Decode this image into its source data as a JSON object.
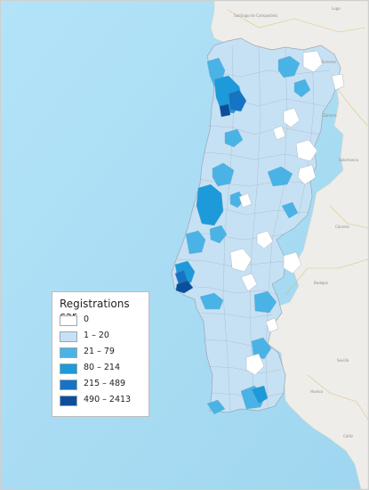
{
  "legend": {
    "title": "Registrations car",
    "items": [
      {
        "label": "0",
        "color": "#ffffff"
      },
      {
        "label": "1 – 20",
        "color": "#c7e1f4"
      },
      {
        "label": "21 – 79",
        "color": "#49b3e6"
      },
      {
        "label": "80 – 214",
        "color": "#1c9ad9"
      },
      {
        "label": "215 – 489",
        "color": "#1574c3"
      },
      {
        "label": "490 – 2413",
        "color": "#0b4f9c"
      }
    ]
  },
  "colors": {
    "ocean": "#a9dcf4",
    "land": "#eeede9",
    "portugal_base": "#c7e1f4",
    "border": "#9aa6b2"
  },
  "place_labels": [
    "Santiago de Compostela",
    "Lugo",
    "Ourense",
    "Zamora",
    "Salamanca",
    "Cáceres",
    "Badajoz",
    "Sevilla",
    "Huelva",
    "Cádiz"
  ]
}
